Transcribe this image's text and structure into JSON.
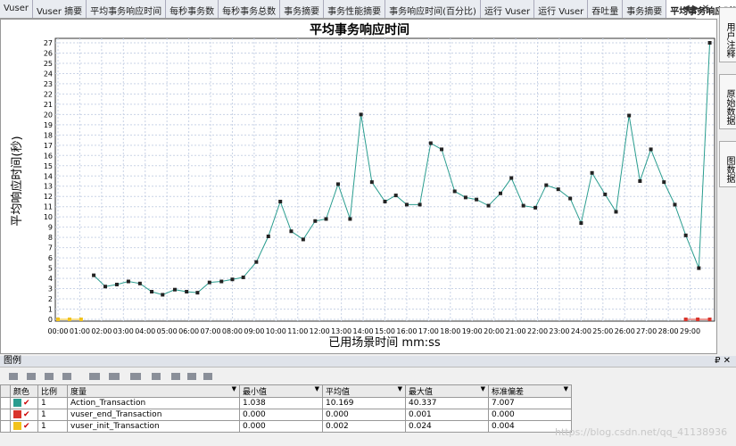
{
  "tabs": [
    "Vuser",
    "Vuser 摘要",
    "平均事务响应时间",
    "每秒事务数",
    "每秒事务总数",
    "事务摘要",
    "事务性能摘要",
    "事务响应时间(百分比)",
    "运行 Vuser",
    "运行 Vuser",
    "吞吐量",
    "事务摘要",
    "平均事务响应时间"
  ],
  "side_panel": [
    "用户注释",
    "原始数据",
    "图数据"
  ],
  "chart_data": {
    "type": "line",
    "title": "平均事务响应时间",
    "xlabel": "已用场景时间 mm:ss",
    "ylabel": "平均响应时间(秒)",
    "xlim": [
      0,
      30
    ],
    "ylim": [
      0,
      27
    ],
    "xticks": [
      {
        "value": 0,
        "label": "00:00"
      },
      {
        "value": 1,
        "label": "01:00"
      },
      {
        "value": 2,
        "label": "02:00"
      },
      {
        "value": 3,
        "label": "03:00"
      },
      {
        "value": 4,
        "label": "04:00"
      },
      {
        "value": 5,
        "label": "05:00"
      },
      {
        "value": 6,
        "label": "06:00"
      },
      {
        "value": 7,
        "label": "07:00"
      },
      {
        "value": 8,
        "label": "08:00"
      },
      {
        "value": 9,
        "label": "09:00"
      },
      {
        "value": 10,
        "label": "10:00"
      },
      {
        "value": 11,
        "label": "11:00"
      },
      {
        "value": 12,
        "label": "12:00"
      },
      {
        "value": 13,
        "label": "13:00"
      },
      {
        "value": 14,
        "label": "14:00"
      },
      {
        "value": 15,
        "label": "15:00"
      },
      {
        "value": 16,
        "label": "16:00"
      },
      {
        "value": 17,
        "label": "17:00"
      },
      {
        "value": 18,
        "label": "18:00"
      },
      {
        "value": 19,
        "label": "19:00"
      },
      {
        "value": 20,
        "label": "20:00"
      },
      {
        "value": 21,
        "label": "21:00"
      },
      {
        "value": 22,
        "label": "22:00"
      },
      {
        "value": 23,
        "label": "23:00"
      },
      {
        "value": 24,
        "label": "24:00"
      },
      {
        "value": 25,
        "label": "25:00"
      },
      {
        "value": 26,
        "label": "26:00"
      },
      {
        "value": 27,
        "label": "27:00"
      },
      {
        "value": 28,
        "label": "28:00"
      },
      {
        "value": 29,
        "label": "29:00"
      }
    ],
    "yticks": [
      0,
      1,
      2,
      3,
      4,
      5,
      6,
      7,
      8,
      9,
      10,
      11,
      12,
      13,
      14,
      15,
      16,
      17,
      18,
      19,
      20,
      21,
      22,
      23,
      24,
      25,
      26,
      27
    ],
    "grid": true,
    "series": [
      {
        "name": "Action_Transaction",
        "color": "#2a9d8f",
        "x": [
          1.64,
          2.17,
          2.7,
          3.23,
          3.76,
          4.3,
          4.8,
          5.36,
          5.9,
          6.4,
          6.95,
          7.5,
          8.0,
          8.5,
          9.1,
          9.65,
          10.2,
          10.7,
          11.25,
          11.8,
          12.3,
          12.85,
          13.4,
          13.9,
          14.4,
          15.0,
          15.5,
          16.0,
          16.6,
          17.1,
          17.6,
          18.2,
          18.7,
          19.2,
          19.75,
          20.3,
          20.8,
          21.35,
          21.9,
          22.4,
          22.95,
          23.5,
          24.0,
          24.5,
          25.1,
          25.6,
          26.2,
          26.7,
          27.2,
          27.8,
          28.3,
          28.8,
          29.4,
          29.9
        ],
        "values": [
          4.3,
          3.2,
          3.4,
          3.7,
          3.5,
          2.7,
          2.4,
          2.9,
          2.7,
          2.6,
          3.6,
          3.7,
          3.9,
          4.1,
          5.6,
          8.1,
          11.5,
          8.6,
          7.8,
          9.6,
          9.8,
          13.2,
          9.8,
          20.0,
          13.4,
          11.5,
          12.1,
          11.2,
          11.2,
          17.2,
          16.6,
          12.5,
          11.9,
          11.7,
          11.1,
          12.3,
          13.8,
          11.1,
          10.9,
          13.1,
          12.7,
          11.8,
          9.4,
          14.3,
          12.2,
          10.5,
          19.9,
          13.5,
          16.6,
          13.4,
          11.2,
          8.2,
          5.0,
          27.0
        ]
      },
      {
        "name": "vuser_end_Transaction",
        "color": "#d9342b",
        "x": [
          28.8,
          29.35,
          29.9
        ],
        "values": [
          0,
          0,
          0
        ]
      },
      {
        "name": "vuser_init_Transaction",
        "color": "#f2c21b",
        "x": [
          0,
          0.53,
          1.06
        ],
        "values": [
          0,
          0,
          0
        ]
      }
    ]
  },
  "legend": {
    "title": "图例",
    "columns": [
      "颜色",
      "比例",
      "度量",
      "最小值",
      "平均值",
      "最大值",
      "标准偏差"
    ],
    "rows": [
      [
        "1",
        "Action_Transaction",
        "1.038",
        "10.169",
        "40.337",
        "7.007"
      ],
      [
        "1",
        "vuser_end_Transaction",
        "0.000",
        "0.000",
        "0.001",
        "0.000"
      ],
      [
        "1",
        "vuser_init_Transaction",
        "0.000",
        "0.002",
        "0.024",
        "0.004"
      ]
    ]
  },
  "watermark": "https://blog.csdn.net/qq_41138936"
}
